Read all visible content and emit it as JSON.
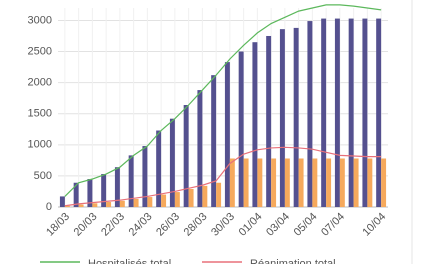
{
  "chart_data": {
    "type": "bar",
    "categories": [
      "18/03",
      null,
      "20/03",
      null,
      "22/03",
      null,
      "24/03",
      null,
      "26/03",
      null,
      "28/03",
      null,
      "30/03",
      null,
      "01/04",
      null,
      "03/04",
      null,
      "05/04",
      null,
      "07/04",
      null,
      null,
      "10/04"
    ],
    "series": [
      {
        "kind": "bar",
        "color": "#54508f",
        "values": [
          170,
          390,
          450,
          530,
          640,
          830,
          980,
          1230,
          1420,
          1640,
          1880,
          2120,
          2330,
          2500,
          2650,
          2750,
          2860,
          2880,
          2990,
          3030,
          3030,
          3030,
          3030,
          3030
        ]
      },
      {
        "kind": "bar",
        "color": "#f6a95c",
        "values": [
          20,
          40,
          60,
          80,
          100,
          130,
          160,
          200,
          240,
          290,
          340,
          390,
          780,
          780,
          780,
          780,
          780,
          780,
          780,
          780,
          780,
          780,
          780,
          780
        ]
      },
      {
        "kind": "line",
        "name": "Hospitalisés total",
        "color": "#5cb85c",
        "values": [
          170,
          390,
          450,
          530,
          640,
          830,
          980,
          1230,
          1420,
          1640,
          1880,
          2120,
          2380,
          2600,
          2800,
          2950,
          3050,
          3150,
          3200,
          3250,
          3250,
          3230,
          3200,
          3170
        ]
      },
      {
        "kind": "line",
        "name": "Réanimation total",
        "color": "#e8707a",
        "values": [
          20,
          50,
          70,
          90,
          110,
          140,
          170,
          210,
          250,
          300,
          350,
          420,
          700,
          850,
          920,
          950,
          960,
          950,
          930,
          880,
          830,
          820,
          810,
          810
        ]
      }
    ],
    "ylim": [
      0,
      3200
    ],
    "yticks": [
      0,
      500,
      1000,
      1500,
      2000,
      2500,
      3000
    ],
    "grid": true
  }
}
